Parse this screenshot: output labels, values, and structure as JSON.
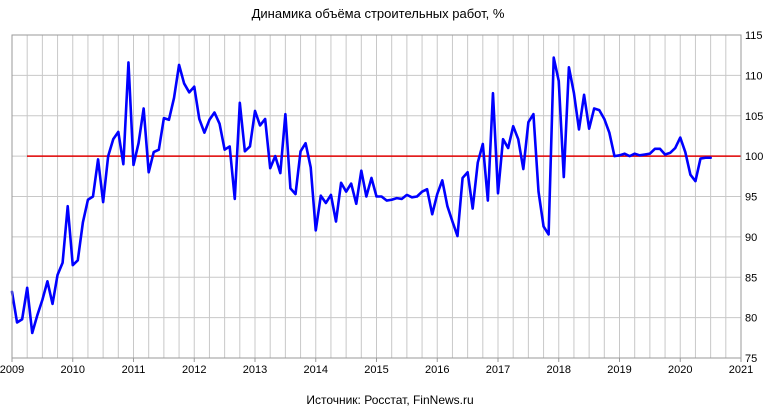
{
  "chart_data": {
    "type": "line",
    "title": "Динамика объёма строительных работ, %",
    "source": "Источник: Росстат, FinNews.ru",
    "xlabel": "",
    "ylabel": "",
    "x_ticks": [
      "2009",
      "2010",
      "2011",
      "2012",
      "2013",
      "2014",
      "2015",
      "2016",
      "2017",
      "2018",
      "2019",
      "2020",
      "2021"
    ],
    "y_ticks": [
      "75",
      "80",
      "85",
      "90",
      "95",
      "100",
      "105",
      "110",
      "115"
    ],
    "xlim": [
      2009,
      2021
    ],
    "ylim": [
      75,
      115
    ],
    "grid": true,
    "reference_line": {
      "y": 100,
      "color": "#e00000"
    },
    "colors": {
      "series": "#0000ff",
      "reference": "#e00000",
      "grid": "#c8c8c8"
    },
    "series": [
      {
        "x": [
          2009.0,
          2009.083,
          2009.167,
          2009.25,
          2009.333,
          2009.417,
          2009.5,
          2009.583,
          2009.667,
          2009.75,
          2009.833,
          2009.917,
          2010.0,
          2010.083,
          2010.167,
          2010.25,
          2010.333,
          2010.417,
          2010.5,
          2010.583,
          2010.667,
          2010.75,
          2010.833,
          2010.917,
          2011.0,
          2011.083,
          2011.167,
          2011.25,
          2011.333,
          2011.417,
          2011.5,
          2011.583,
          2011.667,
          2011.75,
          2011.833,
          2011.917,
          2012.0,
          2012.083,
          2012.167,
          2012.25,
          2012.333,
          2012.417,
          2012.5,
          2012.583,
          2012.667,
          2012.75,
          2012.833,
          2012.917,
          2013.0,
          2013.083,
          2013.167,
          2013.25,
          2013.333,
          2013.417,
          2013.5,
          2013.583,
          2013.667,
          2013.75,
          2013.833,
          2013.917,
          2014.0,
          2014.083,
          2014.167,
          2014.25,
          2014.333,
          2014.417,
          2014.5,
          2014.583,
          2014.667,
          2014.75,
          2014.833,
          2014.917,
          2015.0,
          2015.083,
          2015.167,
          2015.25,
          2015.333,
          2015.417,
          2015.5,
          2015.583,
          2015.667,
          2015.75,
          2015.833,
          2015.917,
          2016.0,
          2016.083,
          2016.167,
          2016.25,
          2016.333,
          2016.417,
          2016.5,
          2016.583,
          2016.667,
          2016.75,
          2016.833,
          2016.917,
          2017.0,
          2017.083,
          2017.167,
          2017.25,
          2017.333,
          2017.417,
          2017.5,
          2017.583,
          2017.667,
          2017.75,
          2017.833,
          2017.917,
          2018.0,
          2018.083,
          2018.167,
          2018.25,
          2018.333,
          2018.417,
          2018.5,
          2018.583,
          2018.667,
          2018.75,
          2018.833,
          2018.917,
          2019.0,
          2019.083,
          2019.167,
          2019.25,
          2019.333,
          2019.417,
          2019.5,
          2019.583,
          2019.667,
          2019.75,
          2019.833,
          2019.917,
          2020.0,
          2020.083,
          2020.167,
          2020.25,
          2020.333,
          2020.417,
          2020.5
        ],
        "y": [
          83.2,
          79.4,
          79.8,
          83.7,
          78.1,
          80.3,
          82.2,
          84.5,
          81.7,
          85.3,
          86.8,
          93.8,
          86.5,
          87.1,
          91.8,
          94.6,
          95.0,
          99.6,
          94.3,
          100.0,
          102.1,
          103.0,
          99.0,
          111.6,
          98.9,
          101.6,
          105.9,
          98.0,
          100.5,
          100.8,
          104.7,
          104.5,
          107.2,
          111.3,
          109.0,
          107.9,
          108.6,
          104.6,
          102.9,
          104.5,
          105.4,
          104.0,
          100.8,
          101.2,
          94.7,
          106.6,
          100.6,
          101.2,
          105.6,
          103.8,
          104.6,
          98.5,
          100.0,
          97.9,
          105.2,
          96.0,
          95.3,
          100.6,
          101.6,
          98.6,
          90.8,
          95.1,
          94.2,
          95.2,
          91.9,
          96.7,
          95.6,
          96.6,
          94.1,
          98.2,
          95.0,
          97.3,
          95.0,
          95.0,
          94.5,
          94.6,
          94.8,
          94.7,
          95.2,
          94.9,
          95.0,
          95.6,
          95.9,
          92.8,
          95.3,
          97.0,
          93.8,
          91.9,
          90.1,
          97.3,
          98.0,
          93.5,
          99.2,
          101.5,
          94.5,
          107.8,
          95.4,
          102.1,
          101.0,
          103.7,
          102.1,
          98.4,
          104.2,
          105.2,
          95.6,
          91.3,
          90.3,
          112.2,
          109.3,
          97.4,
          111.0,
          107.8,
          103.3,
          107.6,
          103.4,
          105.9,
          105.7,
          104.6,
          102.9,
          100.0,
          100.1,
          100.3,
          100.0,
          100.3,
          100.1,
          100.2,
          100.3,
          100.9,
          100.9,
          100.2,
          100.4,
          101.0,
          102.3,
          100.5,
          97.7,
          96.9,
          99.7,
          99.8,
          99.8
        ]
      }
    ]
  }
}
